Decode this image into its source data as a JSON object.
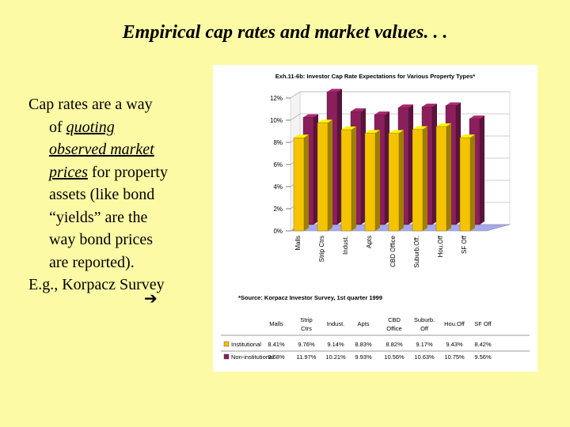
{
  "slide": {
    "title": "Empirical cap rates and market values. . .",
    "body_lines": [
      "Cap rates are a way",
      "of ",
      "quoting",
      "observed market",
      "prices",
      " for property",
      "assets (like bond",
      "“yields” are the",
      "way bond prices",
      "are reported).",
      "E.g., Korpacz Survey"
    ],
    "arrow_icon": "right-arrow-icon"
  },
  "chart_data": {
    "type": "bar",
    "title": "Exh.11-6b: Investor Cap Rate Expectations for Various Property Types*",
    "source": "*Source: Korpacz Investor Survey, 1st quarter 1999",
    "categories": [
      "Malls",
      "Strip Ctrs",
      "Indust.",
      "Apts",
      "CBD Office",
      "Suburb.Off.",
      "Hou.Off",
      "SF Off"
    ],
    "table_headers": [
      "Malls",
      "Strip Ctrs",
      "Indust.",
      "Apts",
      "CBD Office",
      "Suburb. Off",
      "Hou.Off",
      "SF Off"
    ],
    "series": [
      {
        "name": "Institutional",
        "values": [
          8.41,
          9.76,
          9.14,
          8.83,
          8.82,
          9.17,
          9.43,
          8.42
        ],
        "labels": [
          "8.41%",
          "9.76%",
          "9.14%",
          "8.83%",
          "8.82%",
          "9.17%",
          "9.43%",
          "8.42%"
        ],
        "color": "#f5c400"
      },
      {
        "name": "Non-institutional",
        "values": [
          9.68,
          11.97,
          10.21,
          9.93,
          10.56,
          10.63,
          10.75,
          9.56
        ],
        "labels": [
          "9.68%",
          "11.97%",
          "10.21%",
          "9.93%",
          "10.56%",
          "10.63%",
          "10.75%",
          "9.56%"
        ],
        "color": "#8b1f5c"
      }
    ],
    "y_ticks": [
      "0%",
      "2%",
      "4%",
      "6%",
      "8%",
      "10%",
      "12%"
    ],
    "ylim": [
      0,
      12
    ],
    "floor_color": "#a8a8f0"
  }
}
